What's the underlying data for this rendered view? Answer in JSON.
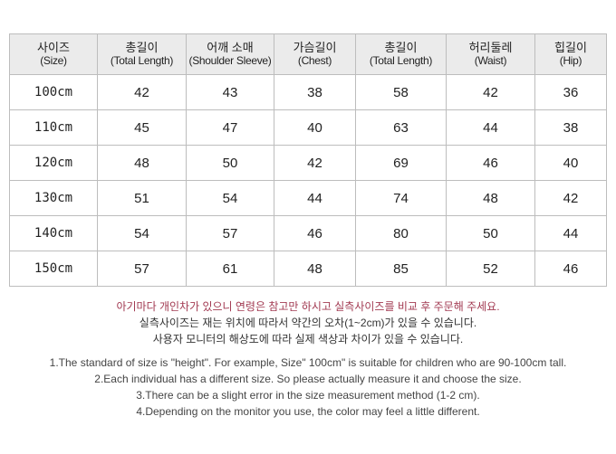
{
  "table": {
    "headers": [
      {
        "ko": "사이즈",
        "en": "(Size)"
      },
      {
        "ko": "총길이",
        "en": "(Total Length)"
      },
      {
        "ko": "어깨 소매",
        "en": "(Shoulder Sleeve)"
      },
      {
        "ko": "가슴길이",
        "en": "(Chest)"
      },
      {
        "ko": "총길이",
        "en": "(Total Length)"
      },
      {
        "ko": "허리둘레",
        "en": "(Waist)"
      },
      {
        "ko": "힙길이",
        "en": "(Hip)"
      }
    ],
    "rows": [
      [
        "100cm",
        42,
        43,
        38,
        58,
        42,
        36
      ],
      [
        "110cm",
        45,
        47,
        40,
        63,
        44,
        38
      ],
      [
        "120cm",
        48,
        50,
        42,
        69,
        46,
        40
      ],
      [
        "130cm",
        51,
        54,
        44,
        74,
        48,
        42
      ],
      [
        "140cm",
        54,
        57,
        46,
        80,
        50,
        44
      ],
      [
        "150cm",
        57,
        61,
        48,
        85,
        52,
        46
      ]
    ]
  },
  "notes_ko": [
    "아기마다 개인차가 있으니 연령은 참고만 하시고 실측사이즈를 비교 후 주문해 주세요.",
    "실측사이즈는 재는 위치에 따라서 약간의  오차(1~2cm)가 있을 수 있습니다.",
    "사용자 모니터의 해상도에 따라 실제 색상과 차이가 있을 수 있습니다."
  ],
  "notes_en": [
    "1.The standard of size is \"height\". For example,  Size\" 100cm\" is suitable for children who are 90-100cm tall.",
    "2.Each individual has a different size. So please actually measure it and choose the size.",
    "3.There can be a slight error in the size measurement method (1-2 cm).",
    "4.Depending on the monitor you use, the color may feel a little different."
  ]
}
